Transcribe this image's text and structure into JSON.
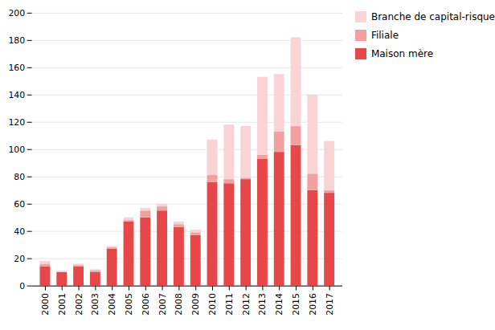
{
  "chart_data": {
    "type": "bar",
    "stacked": true,
    "categories": [
      "2000",
      "2001",
      "2002",
      "2003",
      "2004",
      "2005",
      "2006",
      "2007",
      "2008",
      "2009",
      "2010",
      "2011",
      "2012",
      "2013",
      "2014",
      "2015",
      "2016",
      "2017"
    ],
    "series": [
      {
        "name": "Maison mère",
        "color": "#e8474a",
        "values": [
          14,
          10,
          14,
          10,
          27,
          47,
          50,
          55,
          43,
          37,
          76,
          75,
          78,
          93,
          98,
          103,
          70,
          68
        ]
      },
      {
        "name": "Filiale",
        "color": "#f5a0a0",
        "values": [
          2,
          0,
          1,
          1,
          1,
          1,
          5,
          3,
          2,
          2,
          5,
          3,
          1,
          3,
          15,
          14,
          12,
          2
        ]
      },
      {
        "name": "Branche de capital-risque",
        "color": "#fad4d4",
        "values": [
          2,
          1,
          1,
          1,
          1,
          2,
          2,
          2,
          2,
          2,
          26,
          40,
          38,
          57,
          42,
          65,
          58,
          36
        ]
      }
    ],
    "ylim": [
      0,
      200
    ],
    "yticks": [
      0,
      20,
      40,
      60,
      80,
      100,
      120,
      140,
      160,
      180,
      200
    ],
    "grid": true,
    "legend": "right"
  }
}
